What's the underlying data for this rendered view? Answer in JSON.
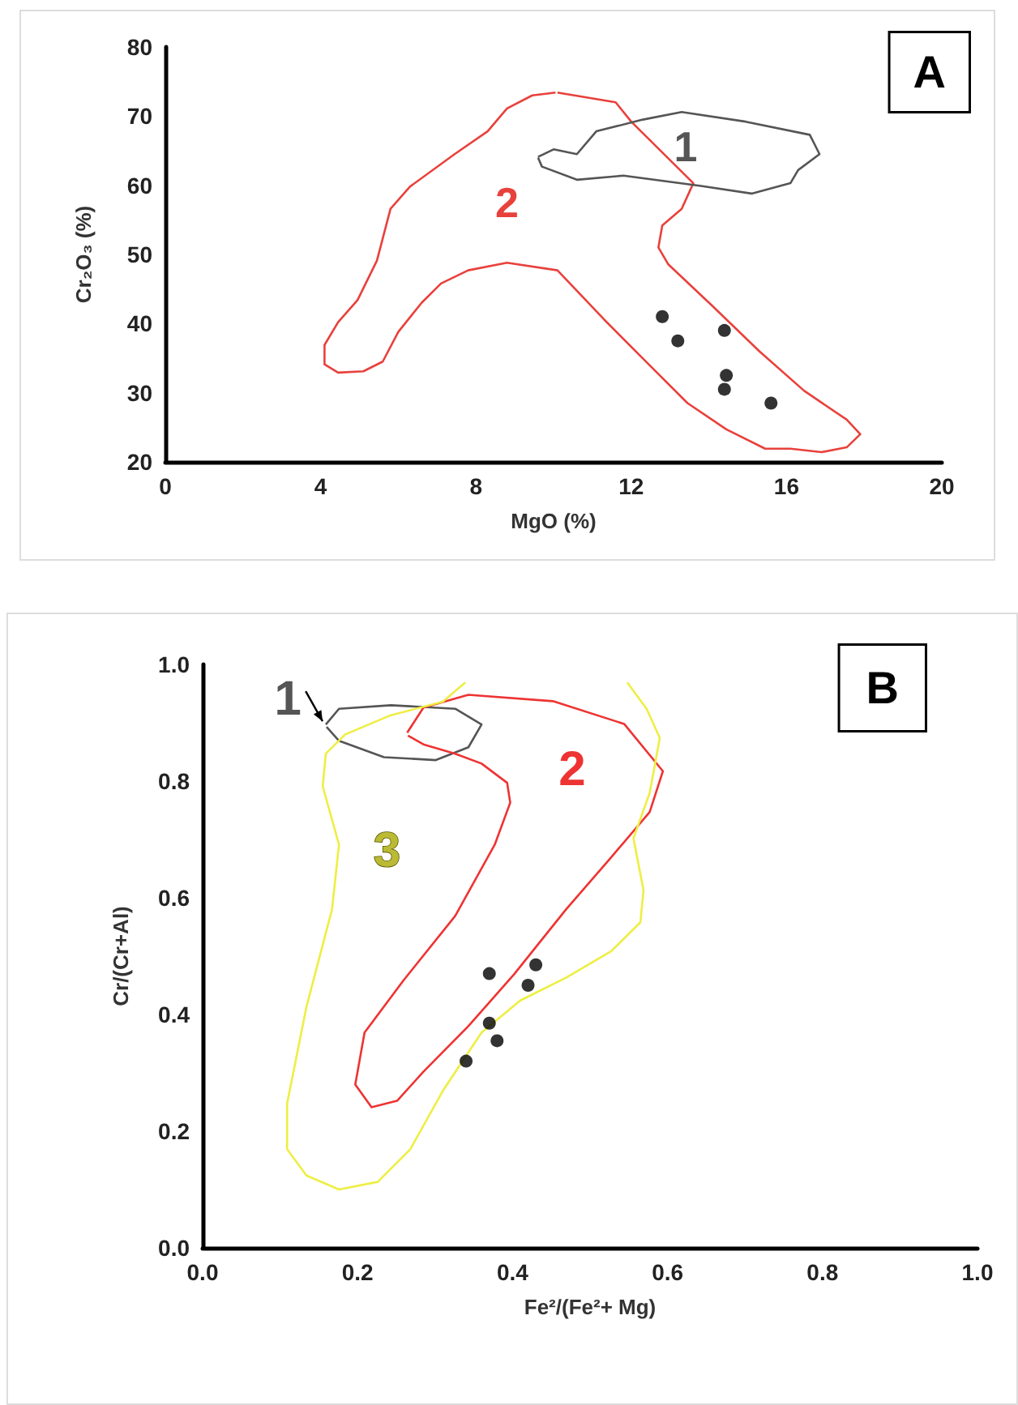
{
  "chart_data": [
    {
      "type": "scatter",
      "xlabel": "MgO (%)",
      "ylabel": "Cr₂O₃ (%)",
      "xlim": [
        0,
        20
      ],
      "ylim": [
        20,
        80
      ],
      "xticks": [
        0,
        4,
        8,
        12,
        16,
        20
      ],
      "yticks": [
        20,
        30,
        40,
        50,
        60,
        70,
        80
      ],
      "line_style": "solid",
      "series": [
        {
          "type": "line",
          "color": "#e8413c",
          "marker": "none",
          "x": [
            10.1,
            11.6,
            12.0,
            13.6,
            13.3,
            12.8,
            12.7,
            12.95,
            14.1,
            15.3,
            16.45,
            17.55,
            17.9,
            17.55,
            16.9,
            16.1,
            15.45,
            14.45,
            13.45,
            12.45,
            11.3,
            10.1,
            8.8,
            7.8,
            7.1,
            6.6,
            6.0,
            5.6,
            5.1,
            4.45,
            4.1,
            4.1,
            4.45,
            4.95,
            5.45,
            5.8,
            6.3,
            7.45,
            8.3,
            8.8,
            9.45,
            10.05
          ],
          "values": [
            73.4,
            72,
            69.2,
            60.3,
            56.6,
            54.2,
            51,
            48.6,
            42.5,
            36,
            30.3,
            26.1,
            24,
            22.1,
            21.4,
            21.9,
            21.9,
            24.7,
            28.5,
            34.1,
            40.6,
            47.7,
            48.8,
            47.7,
            45.8,
            43,
            38.8,
            34.5,
            33.1,
            32.9,
            34.1,
            36.9,
            40.2,
            43.4,
            49.1,
            56.6,
            59.8,
            64.5,
            67.8,
            71.1,
            73,
            73.4
          ]
        },
        {
          "type": "line",
          "color": "#555555",
          "marker": "none",
          "x": [
            9.6,
            10.0,
            10.6,
            11.1,
            12.3,
            13.3,
            14.95,
            16.6,
            16.85,
            16.3,
            16.1,
            15.1,
            13.8,
            11.8,
            10.6,
            9.7,
            9.6
          ],
          "values": [
            64.1,
            65.2,
            64.5,
            67.8,
            69.5,
            70.6,
            69.2,
            67.3,
            64.5,
            62.2,
            60.3,
            58.8,
            59.9,
            61.4,
            60.8,
            62.7,
            64.0
          ]
        },
        {
          "type": "scatter",
          "color": "#000000",
          "marker": "circle",
          "x": [
            12.8,
            13.2,
            14.4,
            14.45,
            14.4,
            15.6
          ],
          "values": [
            41,
            37.5,
            39,
            32.5,
            30.5,
            28.5
          ]
        }
      ],
      "annotations": [
        "2",
        "1",
        "A"
      ]
    },
    {
      "type": "scatter",
      "xlabel": "Fe²/(Fe²+ Mg)",
      "ylabel": "Cr/(Cr+Al)",
      "xlim": [
        0,
        1
      ],
      "ylim": [
        0,
        1
      ],
      "xticks": [
        {
          "value": 0,
          "label": "0.0"
        },
        {
          "value": 0.2,
          "label": "0.2"
        },
        {
          "value": 0.4,
          "label": "0.4"
        },
        {
          "value": 0.6,
          "label": "0.6"
        },
        {
          "value": 0.8,
          "label": "0.8"
        },
        {
          "value": 1,
          "label": "1.0"
        }
      ],
      "yticks": [
        {
          "value": 0,
          "label": "0.0"
        },
        {
          "value": 0.2,
          "label": "0.2"
        },
        {
          "value": 0.4,
          "label": "0.4"
        },
        {
          "value": 0.6,
          "label": "0.6"
        },
        {
          "value": 0.8,
          "label": "0.8"
        },
        {
          "value": 1,
          "label": "1.0"
        }
      ],
      "line_style": "solid",
      "series": [
        {
          "type": "line",
          "color": "#555555",
          "marker": "none",
          "x": [
            0.159,
            0.176,
            0.243,
            0.326,
            0.36,
            0.343,
            0.301,
            0.234,
            0.176,
            0.16
          ],
          "values": [
            0.897,
            0.924,
            0.93,
            0.924,
            0.897,
            0.858,
            0.836,
            0.841,
            0.869,
            0.893
          ]
        },
        {
          "type": "line",
          "color": "#ee3333",
          "marker": "none",
          "x": [
            0.264,
            0.285,
            0.343,
            0.452,
            0.544,
            0.594,
            0.577,
            0.527,
            0.469,
            0.402,
            0.343,
            0.285,
            0.251,
            0.218,
            0.197,
            0.209,
            0.259,
            0.326,
            0.377,
            0.397,
            0.393,
            0.36,
            0.326,
            0.285,
            0.265
          ],
          "values": [
            0.883,
            0.926,
            0.948,
            0.937,
            0.898,
            0.817,
            0.747,
            0.669,
            0.58,
            0.469,
            0.38,
            0.302,
            0.252,
            0.241,
            0.28,
            0.369,
            0.458,
            0.569,
            0.691,
            0.763,
            0.797,
            0.83,
            0.847,
            0.863,
            0.878
          ]
        },
        {
          "type": "line",
          "color": "#eeee44",
          "marker": "none",
          "x": [
            0.339,
            0.31,
            0.243,
            0.184,
            0.159,
            0.155,
            0.176,
            0.167,
            0.134,
            0.109,
            0.109,
            0.134,
            0.176,
            0.226,
            0.268,
            0.31,
            0.36,
            0.41,
            0.469,
            0.527,
            0.565,
            0.569,
            0.556,
            0.577,
            0.59,
            0.573,
            0.548
          ],
          "values": [
            0.969,
            0.936,
            0.913,
            0.88,
            0.847,
            0.791,
            0.691,
            0.58,
            0.413,
            0.247,
            0.169,
            0.124,
            0.1,
            0.113,
            0.169,
            0.269,
            0.369,
            0.424,
            0.463,
            0.508,
            0.558,
            0.613,
            0.702,
            0.78,
            0.874,
            0.924,
            0.969
          ]
        },
        {
          "type": "scatter",
          "color": "#000000",
          "marker": "circle",
          "x": [
            0.37,
            0.43,
            0.42,
            0.37,
            0.38,
            0.34
          ],
          "values": [
            0.47,
            0.485,
            0.45,
            0.385,
            0.355,
            0.32
          ]
        }
      ],
      "annotations": [
        "1",
        "2",
        "3",
        "B"
      ]
    }
  ]
}
